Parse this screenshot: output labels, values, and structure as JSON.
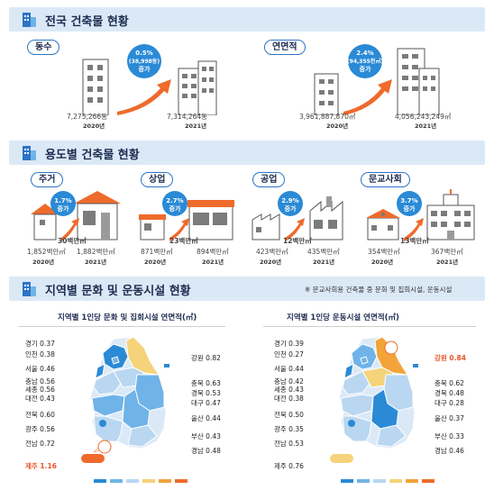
{
  "sections": {
    "s1": {
      "title": "전국 건축물 현황"
    },
    "s2": {
      "title": "용도별 건축물 현황"
    },
    "s3": {
      "title": "지역별 문화 및 운동시설 현황",
      "note": "※ 문교사회용 건축물 중 문화 및 집회시설, 운동시설"
    }
  },
  "national": {
    "count": {
      "label": "동수",
      "v2020": "7,275,266동",
      "y2020": "2020년",
      "v2021": "7,314,264동",
      "y2021": "2021년",
      "badge": [
        "0.5%",
        "(38,998동)",
        "증가"
      ]
    },
    "area": {
      "label": "연면적",
      "v2020": "3,961,887,870㎡",
      "y2020": "2020년",
      "v2021": "4,056,243,249㎡",
      "y2021": "2021년",
      "badge": [
        "2.4%",
        "(94,355천㎡)",
        "증가"
      ]
    }
  },
  "usage": [
    {
      "label": "주거",
      "badge": [
        "1.7%",
        "증가"
      ],
      "delta": "30백만㎡",
      "v2020": "1,852백만㎡",
      "y2020": "2020년",
      "v2021": "1,882백만㎡",
      "y2021": "2021년"
    },
    {
      "label": "상업",
      "badge": [
        "2.7%",
        "증가"
      ],
      "delta": "23백만㎡",
      "v2020": "871백만㎡",
      "y2020": "2020년",
      "v2021": "894백만㎡",
      "y2021": "2021년"
    },
    {
      "label": "공업",
      "badge": [
        "2.9%",
        "증가"
      ],
      "delta": "12백만㎡",
      "v2020": "423백만㎡",
      "y2020": "2020년",
      "v2021": "435백만㎡",
      "y2021": "2021년"
    },
    {
      "label": "문교사회",
      "badge": [
        "3.7%",
        "증가"
      ],
      "delta": "13백만㎡",
      "v2020": "354백만㎡",
      "y2020": "2020년",
      "v2021": "367백만㎡",
      "y2021": "2021년"
    }
  ],
  "maps": [
    {
      "title": "지역별 1인당 문화 및 집회시설 연면적(㎡)",
      "left": [
        "경기 0.37",
        "인천 0.38",
        "서울 0.46",
        "충남 0.56",
        "세종 0.56",
        "대전 0.43",
        "전북 0.60",
        "광주 0.56",
        "전남 0.72",
        "제주 1.16"
      ],
      "right": [
        "강원 0.82",
        "충북 0.63",
        "경북 0.53",
        "대구 0.47",
        "울산 0.44",
        "부산 0.43",
        "경남 0.48"
      ],
      "highlight_left": 9,
      "highlight_right": -1,
      "max_region": "jeju",
      "legend_colors": [
        "#2a8ad6",
        "#6fb3e8",
        "#b9d7f1",
        "#f4d37a",
        "#f2a33a",
        "#ee6b2c"
      ]
    },
    {
      "title": "지역별 1인당 운동시설 연면적(㎡)",
      "left": [
        "경기 0.39",
        "인천 0.27",
        "서울 0.44",
        "충남 0.42",
        "세종 0.43",
        "대전 0.38",
        "전북 0.50",
        "광주 0.35",
        "전남 0.53",
        "제주 0.76"
      ],
      "right": [
        "강원 0.84",
        "충북 0.62",
        "경북 0.48",
        "대구 0.28",
        "울산 0.37",
        "부산 0.33",
        "경남 0.46"
      ],
      "highlight_left": -1,
      "highlight_right": 0,
      "max_region": "gangwon",
      "legend_colors": [
        "#2a8ad6",
        "#6fb3e8",
        "#b9d7f1",
        "#f4d37a",
        "#f2a33a",
        "#ee6b2c"
      ]
    }
  ],
  "colors": {
    "accent": "#2d74c7",
    "arrow": "#ee6b2c",
    "badge": "#2a8ad6",
    "section_bar": "#dbe9f7",
    "highlight": "#e7562a"
  }
}
